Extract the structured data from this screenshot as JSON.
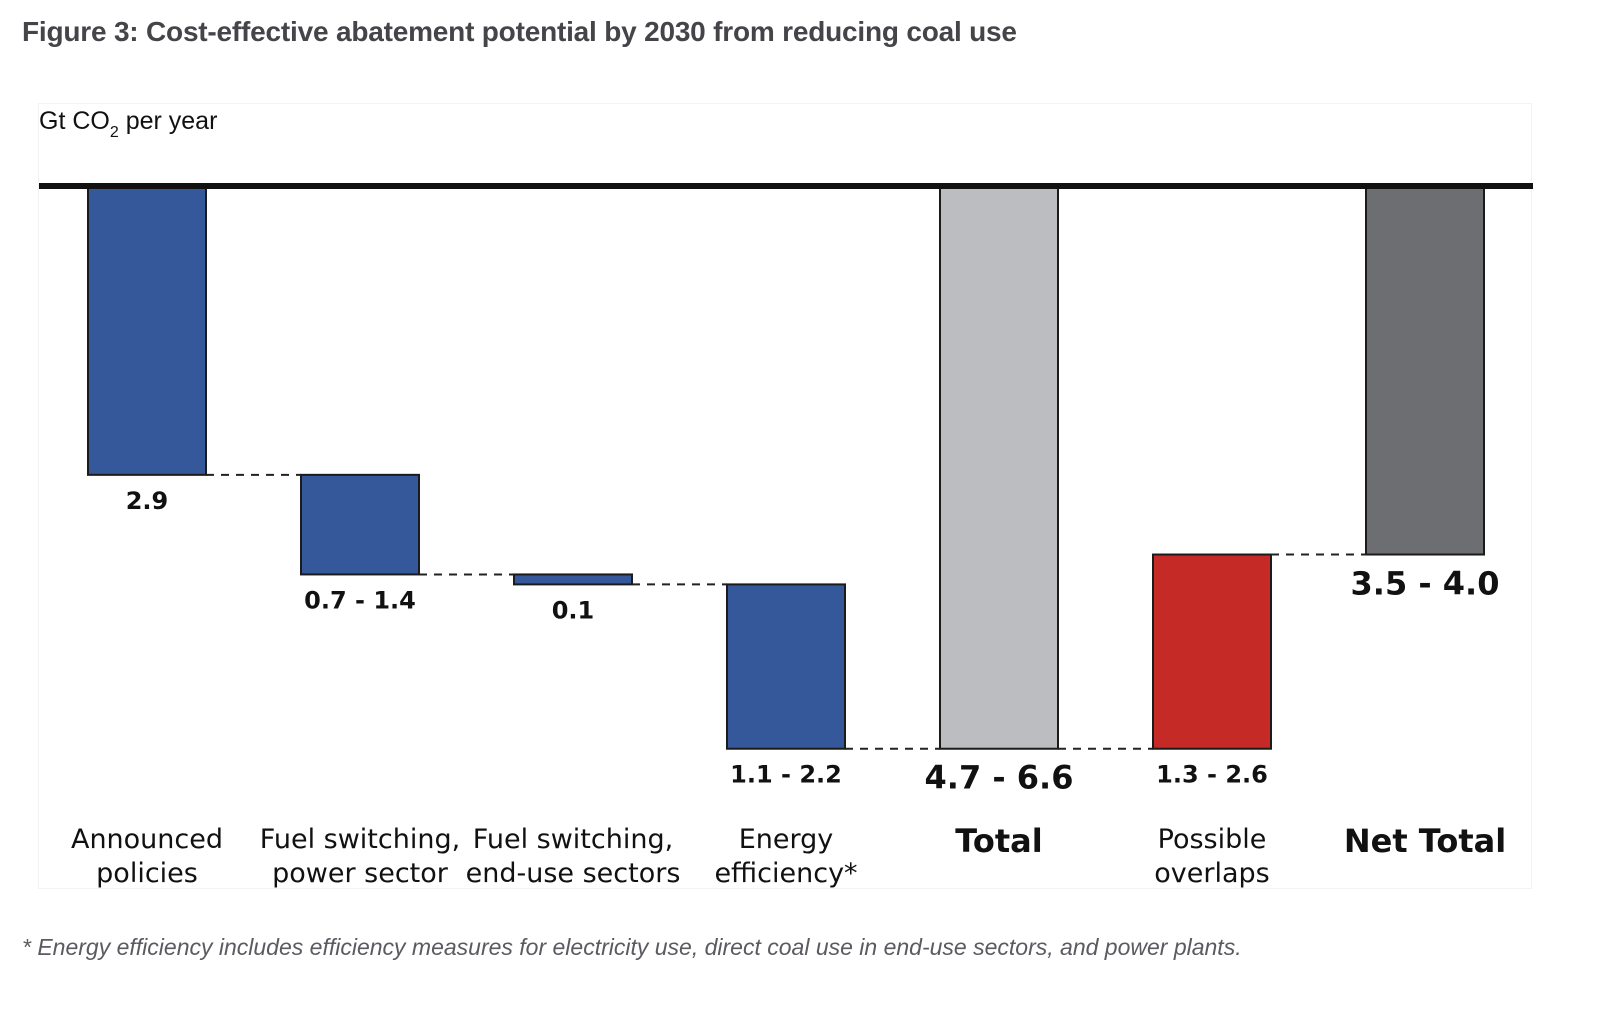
{
  "figure": {
    "title": "Figure 3: Cost-effective abatement potential by 2030 from reducing coal use",
    "footnote": "* Energy efficiency includes efficiency measures for electricity use, direct coal use in end-use sectors, and power plants."
  },
  "colors": {
    "reduction": "#34589a",
    "total": "#bcbdc1",
    "overlap": "#c52a27",
    "net_total": "#6d6e71",
    "baseline": "#111111",
    "connector": "#222222",
    "label_text": "#111111"
  },
  "chart_data": {
    "type": "bar",
    "subtype": "waterfall",
    "title": "",
    "ylabel_prefix": "Gt CO",
    "ylabel_subscript": "2",
    "ylabel_suffix": " per year",
    "ylim": [
      0,
      6.4
    ],
    "y_direction": "downward from baseline",
    "grid": false,
    "categories": [
      [
        "Announced",
        "policies"
      ],
      [
        "Fuel switching,",
        "power sector"
      ],
      [
        "Fuel switching,",
        "end-use sectors"
      ],
      [
        "Energy",
        "efficiency*"
      ],
      [
        "Total"
      ],
      [
        "Possible",
        "overlaps"
      ],
      [
        "Net Total"
      ]
    ],
    "bars": [
      {
        "kind": "reduction",
        "start": 0.0,
        "end": 2.9,
        "label": "2.9"
      },
      {
        "kind": "reduction",
        "start": 2.9,
        "end": 3.9,
        "label": "0.7 - 1.4"
      },
      {
        "kind": "reduction",
        "start": 3.9,
        "end": 4.0,
        "label": "0.1"
      },
      {
        "kind": "reduction",
        "start": 4.0,
        "end": 5.65,
        "label": "1.1 - 2.2"
      },
      {
        "kind": "total",
        "start": 0.0,
        "end": 5.65,
        "label": "4.7 - 6.6"
      },
      {
        "kind": "overlap",
        "start": 3.7,
        "end": 5.65,
        "label": "1.3 - 2.6"
      },
      {
        "kind": "net_total",
        "start": 0.0,
        "end": 3.7,
        "label": "3.5 - 4.0"
      }
    ]
  }
}
